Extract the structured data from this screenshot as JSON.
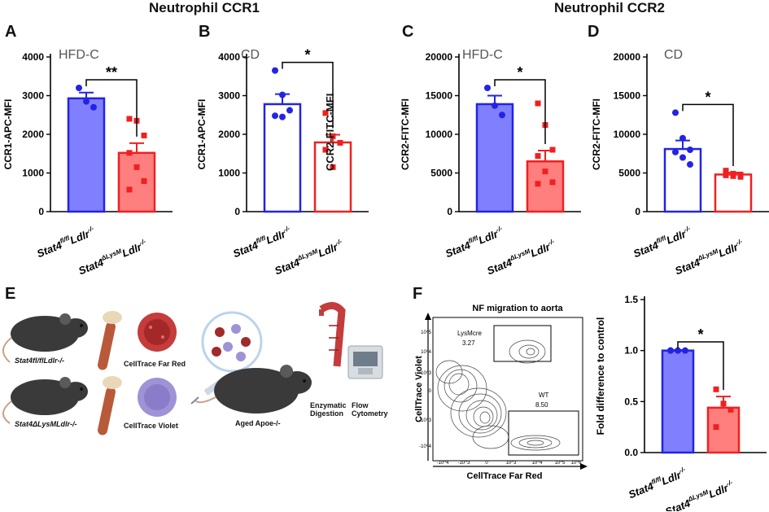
{
  "section_titles": {
    "ccr1": "Neutrophil CCR1",
    "ccr2": "Neutrophil CCR2"
  },
  "panels": {
    "a": "A",
    "b": "B",
    "c": "C",
    "d": "D",
    "e": "E",
    "f": "F"
  },
  "colors": {
    "wt": "#2323e6",
    "wt_fill": "#8080ff",
    "ko": "#f02020",
    "ko_fill": "#ff7f7f"
  },
  "group_labels": {
    "wt_base": "Stat4",
    "wt_sup": "fl/fl",
    "ko_base": "Stat4",
    "ko_sup": "ΔLysM",
    "ldlr": "Ldlr",
    "ldlr_sup": "-/-"
  },
  "chart_data": [
    {
      "id": "A",
      "type": "bar",
      "title": "HFD-C",
      "filled": true,
      "ylabel": "CCR1-APC-MFI",
      "ylim": [
        0,
        4000
      ],
      "yticks": [
        0,
        1000,
        2000,
        3000,
        4000
      ],
      "categories": [
        "Stat4fl/fl Ldlr-/-",
        "Stat4ΔLysM Ldlr-/-"
      ],
      "values": [
        2930,
        1520
      ],
      "sem": [
        150,
        250
      ],
      "points": [
        [
          3200,
          2850,
          2700
        ],
        [
          2400,
          2350,
          1970,
          1520,
          1150,
          790,
          570
        ]
      ],
      "significance": "**"
    },
    {
      "id": "B",
      "type": "bar",
      "title": "CD",
      "filled": false,
      "ylabel": "CCR1-APC-MFI",
      "ylim": [
        0,
        4000
      ],
      "yticks": [
        0,
        1000,
        2000,
        3000,
        4000
      ],
      "categories": [
        "Stat4fl/fl Ldlr-/-",
        "Stat4ΔLysM Ldlr-/-"
      ],
      "values": [
        2780,
        1790
      ],
      "sem": [
        260,
        200
      ],
      "points": [
        [
          3650,
          3020,
          2620,
          2480,
          2450
        ],
        [
          2550,
          1950,
          1780,
          1600,
          1150
        ]
      ],
      "significance": "*"
    },
    {
      "id": "C",
      "type": "bar",
      "title": "HFD-C",
      "filled": true,
      "ylabel": "CCR2-FITC-MFI",
      "ylim": [
        0,
        20000
      ],
      "yticks": [
        0,
        5000,
        10000,
        15000,
        20000
      ],
      "categories": [
        "Stat4fl/fl Ldlr-/-",
        "Stat4ΔLysM Ldlr-/-"
      ],
      "values": [
        13900,
        6500
      ],
      "sem": [
        1100,
        1400
      ],
      "points": [
        [
          16000,
          13700,
          12500
        ],
        [
          14000,
          11200,
          8000,
          7200,
          5200,
          3800,
          3600
        ]
      ],
      "significance": "*"
    },
    {
      "id": "D",
      "type": "bar",
      "title": "CD",
      "filled": false,
      "ylabel": "CCR2-FITC-MFI",
      "ylim": [
        0,
        20000
      ],
      "yticks": [
        0,
        5000,
        10000,
        15000,
        20000
      ],
      "categories": [
        "Stat4fl/fl Ldlr-/-",
        "Stat4ΔLysM Ldlr-/-"
      ],
      "values": [
        8100,
        4800
      ],
      "sem": [
        1100,
        250
      ],
      "points": [
        [
          12800,
          9500,
          8000,
          7700,
          7000,
          6100
        ],
        [
          5300,
          4900,
          4800,
          4700,
          4600,
          4500
        ]
      ],
      "significance": "*"
    },
    {
      "id": "F",
      "type": "bar",
      "title": "",
      "filled": true,
      "ylabel": "Fold difference to control",
      "ylim": [
        0,
        1.5
      ],
      "yticks": [
        0.0,
        0.5,
        1.0,
        1.5
      ],
      "categories": [
        "Stat4fl/fl Ldlr-/-",
        "Stat4ΔLysM Ldlr-/-"
      ],
      "values": [
        1.0,
        0.44
      ],
      "sem": [
        0.005,
        0.11
      ],
      "points": [
        [
          1.0,
          1.0,
          1.0,
          1.0
        ],
        [
          0.62,
          0.48,
          0.42,
          0.25
        ]
      ],
      "significance": "*"
    }
  ],
  "ccr2_side_label": "CCR2-FITC-MFI",
  "flow": {
    "title": "NF migration to aorta",
    "xlabel": "CellTrace Far Red",
    "ylabel": "CellTrace Violet",
    "gate1": {
      "name": "LysMcre",
      "value": "3.27"
    },
    "gate2": {
      "name": "WT",
      "value": "8.50"
    },
    "yticks": [
      "10^5",
      "10^4",
      "10^3",
      "0",
      "-10^3",
      "-10^4"
    ],
    "xticks": [
      "-10^4",
      "-10^3",
      "0",
      "10^3",
      "10^4",
      "10^5",
      "10^6"
    ]
  },
  "schematic": {
    "mouse1": "Stat4fl/flLdlr-/-",
    "mouse2": "Stat4ΔLysMLdlr-/-",
    "dye1": "CellTrace Far Red",
    "dye2": "CellTrace Violet",
    "host": "Aged Apoe-/-",
    "step1": "Enzymatic Digestion",
    "step2": "Flow Cytometry"
  }
}
